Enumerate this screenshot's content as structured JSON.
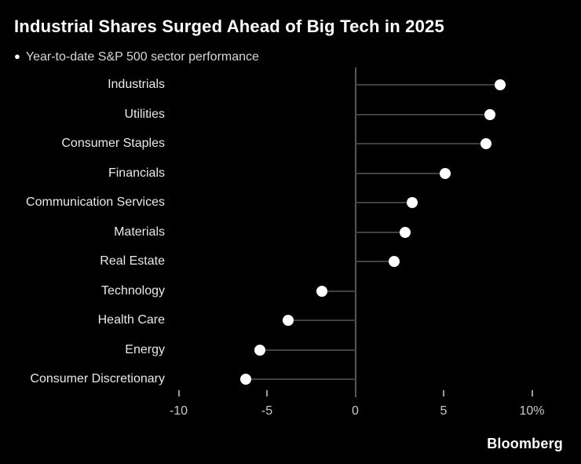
{
  "header": {
    "title": "Industrial Shares Surged Ahead of Big Tech in 2025",
    "legend_bullet": "●",
    "subtitle": "Year-to-date S&P 500 sector performance"
  },
  "chart_data": {
    "type": "bar",
    "variant": "horizontal-lollipop",
    "title": "Industrial Shares Surged Ahead of Big Tech in 2025",
    "subtitle": "Year-to-date S&P 500 sector performance",
    "categories": [
      "Industrials",
      "Utilities",
      "Consumer Staples",
      "Financials",
      "Communication Services",
      "Materials",
      "Real Estate",
      "Technology",
      "Health Care",
      "Energy",
      "Consumer Discretionary"
    ],
    "values": [
      8.2,
      7.6,
      7.4,
      5.1,
      3.2,
      2.8,
      2.2,
      -1.9,
      -3.8,
      -5.4,
      -6.2
    ],
    "unit": "%",
    "xlabel": "",
    "ylabel": "",
    "xlim": [
      -10,
      10
    ],
    "x_ticks": [
      {
        "value": -10,
        "label": "-10"
      },
      {
        "value": -5,
        "label": "-5"
      },
      {
        "value": 0,
        "label": "0"
      },
      {
        "value": 5,
        "label": "5"
      },
      {
        "value": 10,
        "label": "10%"
      }
    ],
    "grid": false,
    "legend_position": "none",
    "colors": {
      "background": "#000000",
      "marker": "#ffffff",
      "stem": "#404040",
      "zero_axis": "#565656",
      "tick": "#9a9a9a",
      "tick_label": "#c9c9c9",
      "category_label": "#e9e9e9",
      "title": "#ffffff",
      "subtitle": "#d6d6d6"
    }
  },
  "footer": {
    "brand": "Bloomberg"
  }
}
